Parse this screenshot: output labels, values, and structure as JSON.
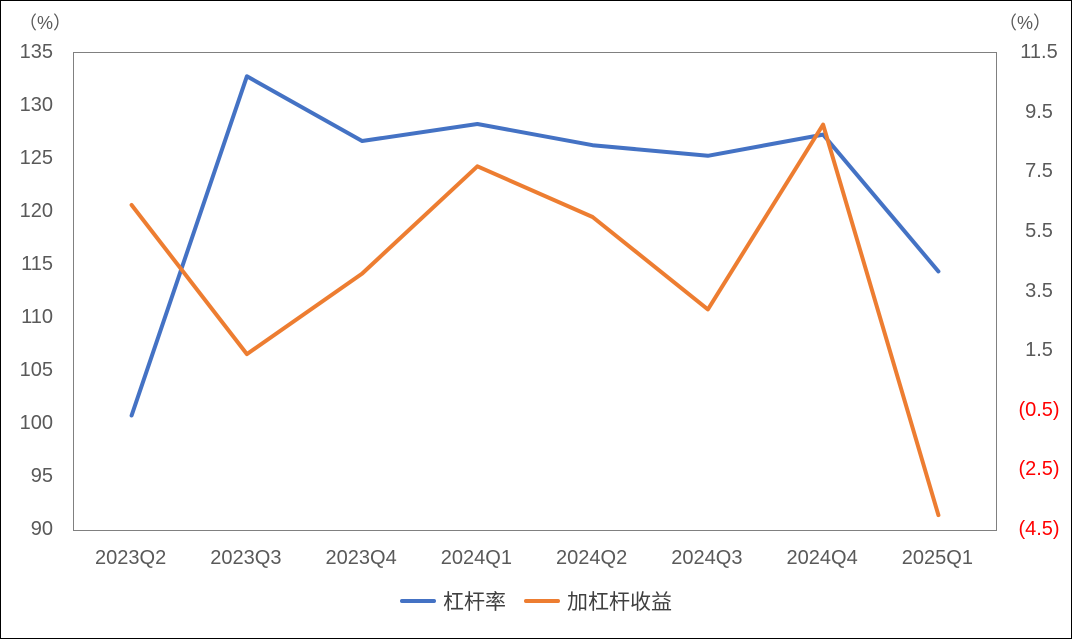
{
  "chart_data": {
    "type": "line",
    "title": "",
    "grid": false,
    "legend_position": "bottom",
    "categories": [
      "2023Q2",
      "2023Q3",
      "2023Q4",
      "2024Q1",
      "2024Q2",
      "2024Q3",
      "2024Q4",
      "2025Q1"
    ],
    "series": [
      {
        "key": "leverage-ratio",
        "name": "杠杆率",
        "axis": "left",
        "color": "#4472C4",
        "values": [
          100.8,
          132.8,
          126.7,
          128.3,
          126.3,
          125.3,
          127.3,
          114.4
        ]
      },
      {
        "key": "leveraged-return",
        "name": "加杠杆收益",
        "axis": "right",
        "color": "#ED7D31",
        "values": [
          6.4,
          1.4,
          4.1,
          7.7,
          6.0,
          2.9,
          9.1,
          -4.0
        ]
      }
    ],
    "left_axis": {
      "title": "（%）",
      "min": 90,
      "max": 135,
      "step": 5,
      "tick_labels": [
        "135",
        "130",
        "125",
        "120",
        "115",
        "110",
        "105",
        "100",
        "95",
        "90"
      ],
      "tick_values": [
        135,
        130,
        125,
        120,
        115,
        110,
        105,
        100,
        95,
        90
      ]
    },
    "right_axis": {
      "title": "（%）",
      "min": -4.5,
      "max": 11.5,
      "step": 2,
      "tick_labels": [
        "11.5",
        "9.5",
        "7.5",
        "5.5",
        "3.5",
        "1.5",
        "(0.5)",
        "(2.5)",
        "(4.5)"
      ],
      "tick_values": [
        11.5,
        9.5,
        7.5,
        5.5,
        3.5,
        1.5,
        -0.5,
        -2.5,
        -4.5
      ]
    }
  },
  "colors": {
    "tick_text": "#595959",
    "negative_tick": "#FF0000",
    "axis_line": "#808080",
    "frame": "#000000",
    "background": "#FFFFFF",
    "series_blue": "#4472C4",
    "series_orange": "#ED7D31"
  }
}
